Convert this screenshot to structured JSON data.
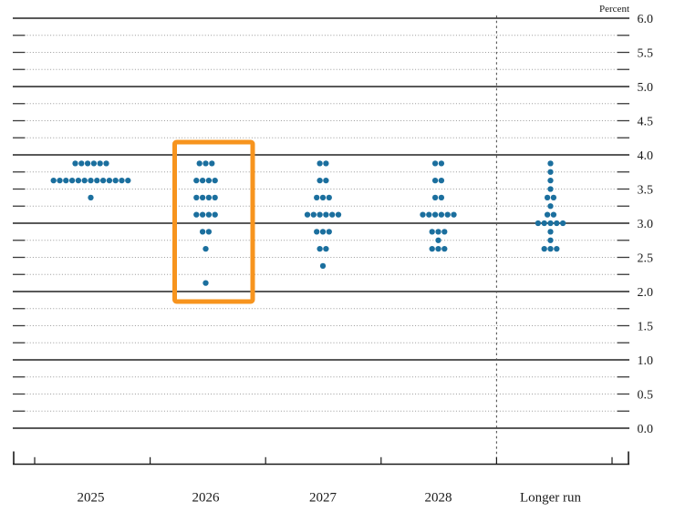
{
  "chart_data": {
    "type": "scatter",
    "subtype": "dot-plot",
    "unit_label": "Percent",
    "ylim": [
      0.0,
      6.0
    ],
    "y_major_step": 1.0,
    "y_label_step": 0.5,
    "y_minor_step": 0.25,
    "grid": "solid integer lines, dotted quarter lines with short end dashes",
    "legend_position": "none",
    "y_ticks": [
      {
        "value": 6.0,
        "label": "6.0"
      },
      {
        "value": 5.5,
        "label": "5.5"
      },
      {
        "value": 5.0,
        "label": "5.0"
      },
      {
        "value": 4.5,
        "label": "4.5"
      },
      {
        "value": 4.0,
        "label": "4.0"
      },
      {
        "value": 3.5,
        "label": "3.5"
      },
      {
        "value": 3.0,
        "label": "3.0"
      },
      {
        "value": 2.5,
        "label": "2.5"
      },
      {
        "value": 2.0,
        "label": "2.0"
      },
      {
        "value": 1.5,
        "label": "1.5"
      },
      {
        "value": 1.0,
        "label": "1.0"
      },
      {
        "value": 0.5,
        "label": "0.5"
      },
      {
        "value": 0.0,
        "label": "0.0"
      }
    ],
    "categories": [
      "2025",
      "2026",
      "2027",
      "2028",
      "Longer run"
    ],
    "series": [
      {
        "category": "2025",
        "dots": [
          {
            "level": 3.875,
            "count": 6
          },
          {
            "level": 3.625,
            "count": 13
          },
          {
            "level": 3.375,
            "count": 1
          }
        ]
      },
      {
        "category": "2026",
        "dots": [
          {
            "level": 3.875,
            "count": 3
          },
          {
            "level": 3.625,
            "count": 4
          },
          {
            "level": 3.375,
            "count": 4
          },
          {
            "level": 3.125,
            "count": 4
          },
          {
            "level": 2.875,
            "count": 2
          },
          {
            "level": 2.625,
            "count": 1
          },
          {
            "level": 2.125,
            "count": 1
          }
        ]
      },
      {
        "category": "2027",
        "dots": [
          {
            "level": 3.875,
            "count": 2
          },
          {
            "level": 3.625,
            "count": 2
          },
          {
            "level": 3.375,
            "count": 3
          },
          {
            "level": 3.125,
            "count": 6
          },
          {
            "level": 2.875,
            "count": 3
          },
          {
            "level": 2.625,
            "count": 2
          },
          {
            "level": 2.375,
            "count": 1
          }
        ]
      },
      {
        "category": "2028",
        "dots": [
          {
            "level": 3.875,
            "count": 2
          },
          {
            "level": 3.625,
            "count": 2
          },
          {
            "level": 3.375,
            "count": 2
          },
          {
            "level": 3.125,
            "count": 6
          },
          {
            "level": 2.875,
            "count": 3
          },
          {
            "level": 2.75,
            "count": 1
          },
          {
            "level": 2.625,
            "count": 3
          }
        ]
      },
      {
        "category": "Longer run",
        "dots": [
          {
            "level": 3.875,
            "count": 1
          },
          {
            "level": 3.75,
            "count": 1
          },
          {
            "level": 3.625,
            "count": 1
          },
          {
            "level": 3.5,
            "count": 1
          },
          {
            "level": 3.375,
            "count": 2
          },
          {
            "level": 3.25,
            "count": 1
          },
          {
            "level": 3.125,
            "count": 2
          },
          {
            "level": 3.0,
            "count": 5
          },
          {
            "level": 2.875,
            "count": 1
          },
          {
            "level": 2.75,
            "count": 1
          },
          {
            "level": 2.625,
            "count": 3
          }
        ]
      }
    ],
    "separator_before_category": "Longer run",
    "highlight": {
      "category": "2026",
      "color": "#f7941e"
    }
  },
  "colors": {
    "dot": "#1b6f9e",
    "highlight_box": "#f7941e",
    "grid_major": "#222222",
    "grid_minor": "#9a9a9a",
    "grid_end_dash": "#3a3a3a",
    "separator": "#555555",
    "axis": "#1a1a1a",
    "text": "#1a1a1a",
    "background": "#ffffff"
  }
}
